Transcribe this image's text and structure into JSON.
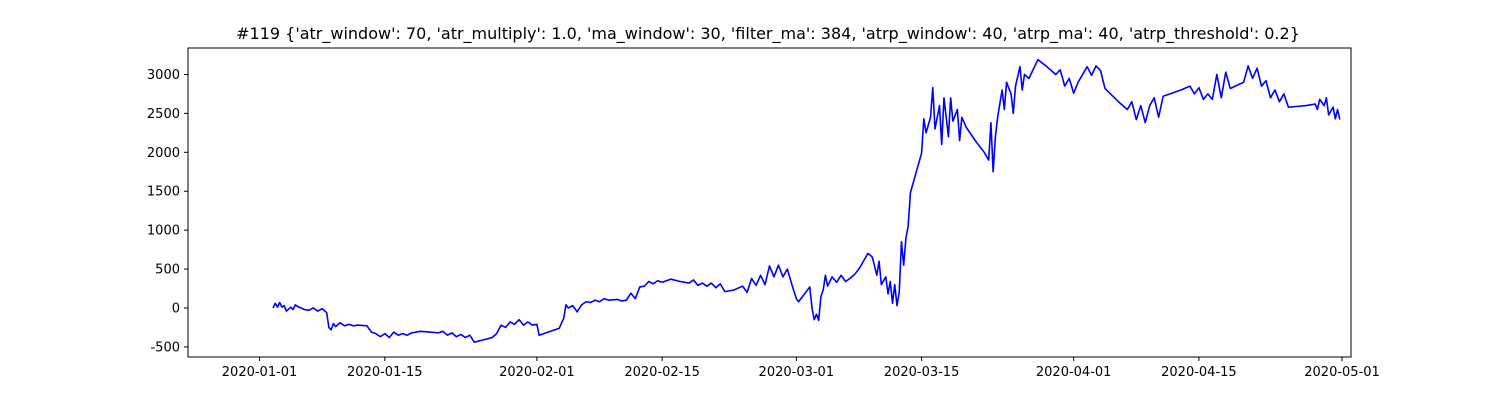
{
  "chart_data": {
    "type": "line",
    "title": "#119 {'atr_window': 70, 'atr_multiply': 1.0, 'ma_window': 30, 'filter_ma': 384, 'atrp_window': 40, 'atrp_ma': 40, 'atrp_threshold': 0.2}",
    "xlabel": "",
    "ylabel": "",
    "xlim": [
      "2019-12-24",
      "2020-05-02"
    ],
    "ylim": [
      -630,
      3340
    ],
    "x_ticks": [
      "2020-01-01",
      "2020-01-15",
      "2020-02-01",
      "2020-02-15",
      "2020-03-01",
      "2020-03-15",
      "2020-04-01",
      "2020-04-15",
      "2020-05-01"
    ],
    "y_ticks": [
      -500,
      0,
      500,
      1000,
      1500,
      2000,
      2500,
      3000
    ],
    "grid": false,
    "legend": "none",
    "series": [
      {
        "color": "#0000ff",
        "points": [
          [
            "2020-01-02 12:00",
            0
          ],
          [
            "2020-01-02 18:00",
            60
          ],
          [
            "2020-01-03 00:00",
            10
          ],
          [
            "2020-01-03 06:00",
            70
          ],
          [
            "2020-01-03 12:00",
            10
          ],
          [
            "2020-01-03 18:00",
            30
          ],
          [
            "2020-01-04 00:00",
            -40
          ],
          [
            "2020-01-04 12:00",
            10
          ],
          [
            "2020-01-04 18:00",
            -20
          ],
          [
            "2020-01-05 00:00",
            40
          ],
          [
            "2020-01-05 06:00",
            20
          ],
          [
            "2020-01-06 00:00",
            -20
          ],
          [
            "2020-01-06 12:00",
            -30
          ],
          [
            "2020-01-07 00:00",
            0
          ],
          [
            "2020-01-07 12:00",
            -40
          ],
          [
            "2020-01-08 00:00",
            -10
          ],
          [
            "2020-01-08 12:00",
            -60
          ],
          [
            "2020-01-08 18:00",
            -250
          ],
          [
            "2020-01-09 00:00",
            -280
          ],
          [
            "2020-01-09 06:00",
            -200
          ],
          [
            "2020-01-09 12:00",
            -240
          ],
          [
            "2020-01-10 00:00",
            -190
          ],
          [
            "2020-01-10 12:00",
            -230
          ],
          [
            "2020-01-11 00:00",
            -210
          ],
          [
            "2020-01-11 12:00",
            -230
          ],
          [
            "2020-01-12 00:00",
            -220
          ],
          [
            "2020-01-13 00:00",
            -230
          ],
          [
            "2020-01-13 12:00",
            -310
          ],
          [
            "2020-01-14 00:00",
            -330
          ],
          [
            "2020-01-14 12:00",
            -370
          ],
          [
            "2020-01-15 00:00",
            -330
          ],
          [
            "2020-01-15 12:00",
            -380
          ],
          [
            "2020-01-16 00:00",
            -310
          ],
          [
            "2020-01-16 12:00",
            -350
          ],
          [
            "2020-01-17 00:00",
            -330
          ],
          [
            "2020-01-17 12:00",
            -350
          ],
          [
            "2020-01-18 00:00",
            -320
          ],
          [
            "2020-01-19 00:00",
            -300
          ],
          [
            "2020-01-20 00:00",
            -310
          ],
          [
            "2020-01-21 00:00",
            -320
          ],
          [
            "2020-01-21 12:00",
            -300
          ],
          [
            "2020-01-22 00:00",
            -350
          ],
          [
            "2020-01-22 12:00",
            -320
          ],
          [
            "2020-01-23 00:00",
            -370
          ],
          [
            "2020-01-23 12:00",
            -340
          ],
          [
            "2020-01-24 00:00",
            -380
          ],
          [
            "2020-01-24 12:00",
            -350
          ],
          [
            "2020-01-25 00:00",
            -440
          ],
          [
            "2020-01-26 00:00",
            -410
          ],
          [
            "2020-01-27 00:00",
            -380
          ],
          [
            "2020-01-27 12:00",
            -330
          ],
          [
            "2020-01-28 00:00",
            -220
          ],
          [
            "2020-01-28 12:00",
            -250
          ],
          [
            "2020-01-29 00:00",
            -180
          ],
          [
            "2020-01-29 12:00",
            -210
          ],
          [
            "2020-01-30 00:00",
            -150
          ],
          [
            "2020-01-30 12:00",
            -220
          ],
          [
            "2020-01-31 00:00",
            -180
          ],
          [
            "2020-01-31 12:00",
            -220
          ],
          [
            "2020-02-01 00:00",
            -210
          ],
          [
            "2020-02-01 06:00",
            -350
          ],
          [
            "2020-02-03 12:00",
            -260
          ],
          [
            "2020-02-04 00:00",
            -130
          ],
          [
            "2020-02-04 06:00",
            40
          ],
          [
            "2020-02-04 12:00",
            0
          ],
          [
            "2020-02-05 00:00",
            30
          ],
          [
            "2020-02-05 12:00",
            -50
          ],
          [
            "2020-02-06 00:00",
            40
          ],
          [
            "2020-02-06 12:00",
            80
          ],
          [
            "2020-02-07 00:00",
            70
          ],
          [
            "2020-02-07 12:00",
            100
          ],
          [
            "2020-02-08 00:00",
            80
          ],
          [
            "2020-02-08 12:00",
            120
          ],
          [
            "2020-02-09 00:00",
            100
          ],
          [
            "2020-02-10 00:00",
            110
          ],
          [
            "2020-02-10 12:00",
            90
          ],
          [
            "2020-02-11 00:00",
            100
          ],
          [
            "2020-02-11 12:00",
            190
          ],
          [
            "2020-02-12 00:00",
            120
          ],
          [
            "2020-02-12 12:00",
            270
          ],
          [
            "2020-02-13 00:00",
            280
          ],
          [
            "2020-02-13 12:00",
            340
          ],
          [
            "2020-02-14 00:00",
            310
          ],
          [
            "2020-02-14 12:00",
            350
          ],
          [
            "2020-02-15 00:00",
            330
          ],
          [
            "2020-02-16 00:00",
            370
          ],
          [
            "2020-02-17 00:00",
            340
          ],
          [
            "2020-02-18 00:00",
            320
          ],
          [
            "2020-02-18 12:00",
            360
          ],
          [
            "2020-02-19 00:00",
            290
          ],
          [
            "2020-02-19 12:00",
            320
          ],
          [
            "2020-02-20 00:00",
            280
          ],
          [
            "2020-02-20 12:00",
            320
          ],
          [
            "2020-02-21 00:00",
            260
          ],
          [
            "2020-02-21 12:00",
            310
          ],
          [
            "2020-02-22 00:00",
            210
          ],
          [
            "2020-02-23 00:00",
            230
          ],
          [
            "2020-02-24 00:00",
            280
          ],
          [
            "2020-02-24 12:00",
            200
          ],
          [
            "2020-02-25 00:00",
            380
          ],
          [
            "2020-02-25 12:00",
            290
          ],
          [
            "2020-02-26 00:00",
            420
          ],
          [
            "2020-02-26 12:00",
            300
          ],
          [
            "2020-02-27 00:00",
            540
          ],
          [
            "2020-02-27 12:00",
            400
          ],
          [
            "2020-02-28 00:00",
            550
          ],
          [
            "2020-02-28 12:00",
            400
          ],
          [
            "2020-02-29 00:00",
            500
          ],
          [
            "2020-02-29 12:00",
            300
          ],
          [
            "2020-03-01 00:00",
            120
          ],
          [
            "2020-03-01 06:00",
            80
          ],
          [
            "2020-03-02 12:00",
            270
          ],
          [
            "2020-03-02 18:00",
            0
          ],
          [
            "2020-03-03 00:00",
            -150
          ],
          [
            "2020-03-03 06:00",
            -80
          ],
          [
            "2020-03-03 12:00",
            -160
          ],
          [
            "2020-03-03 18:00",
            150
          ],
          [
            "2020-03-04 00:00",
            230
          ],
          [
            "2020-03-04 06:00",
            420
          ],
          [
            "2020-03-04 12:00",
            280
          ],
          [
            "2020-03-05 00:00",
            400
          ],
          [
            "2020-03-05 12:00",
            330
          ],
          [
            "2020-03-06 00:00",
            420
          ],
          [
            "2020-03-06 12:00",
            340
          ],
          [
            "2020-03-07 00:00",
            380
          ],
          [
            "2020-03-07 12:00",
            430
          ],
          [
            "2020-03-08 00:00",
            500
          ],
          [
            "2020-03-08 12:00",
            600
          ],
          [
            "2020-03-09 00:00",
            700
          ],
          [
            "2020-03-09 06:00",
            680
          ],
          [
            "2020-03-09 12:00",
            650
          ],
          [
            "2020-03-10 00:00",
            420
          ],
          [
            "2020-03-10 06:00",
            600
          ],
          [
            "2020-03-10 12:00",
            300
          ],
          [
            "2020-03-11 00:00",
            400
          ],
          [
            "2020-03-11 06:00",
            180
          ],
          [
            "2020-03-11 12:00",
            340
          ],
          [
            "2020-03-11 18:00",
            60
          ],
          [
            "2020-03-12 00:00",
            300
          ],
          [
            "2020-03-12 06:00",
            30
          ],
          [
            "2020-03-12 12:00",
            200
          ],
          [
            "2020-03-12 18:00",
            850
          ],
          [
            "2020-03-13 00:00",
            550
          ],
          [
            "2020-03-13 06:00",
            900
          ],
          [
            "2020-03-13 12:00",
            1050
          ],
          [
            "2020-03-13 18:00",
            1480
          ],
          [
            "2020-03-15 00:00",
            1990
          ],
          [
            "2020-03-15 06:00",
            2430
          ],
          [
            "2020-03-15 12:00",
            2250
          ],
          [
            "2020-03-16 00:00",
            2450
          ],
          [
            "2020-03-16 06:00",
            2830
          ],
          [
            "2020-03-16 12:00",
            2300
          ],
          [
            "2020-03-17 00:00",
            2600
          ],
          [
            "2020-03-17 06:00",
            2100
          ],
          [
            "2020-03-17 12:00",
            2700
          ],
          [
            "2020-03-18 00:00",
            2200
          ],
          [
            "2020-03-18 06:00",
            2700
          ],
          [
            "2020-03-18 12:00",
            2400
          ],
          [
            "2020-03-19 00:00",
            2550
          ],
          [
            "2020-03-19 06:00",
            2150
          ],
          [
            "2020-03-19 12:00",
            2450
          ],
          [
            "2020-03-20 00:00",
            2320
          ],
          [
            "2020-03-21 00:00",
            2150
          ],
          [
            "2020-03-22 00:00",
            2000
          ],
          [
            "2020-03-22 12:00",
            1900
          ],
          [
            "2020-03-22 18:00",
            2380
          ],
          [
            "2020-03-23 00:00",
            1750
          ],
          [
            "2020-03-23 06:00",
            2200
          ],
          [
            "2020-03-23 12:00",
            2450
          ],
          [
            "2020-03-24 00:00",
            2800
          ],
          [
            "2020-03-24 06:00",
            2550
          ],
          [
            "2020-03-24 12:00",
            2900
          ],
          [
            "2020-03-25 00:00",
            2750
          ],
          [
            "2020-03-25 06:00",
            2500
          ],
          [
            "2020-03-25 12:00",
            2850
          ],
          [
            "2020-03-26 00:00",
            3100
          ],
          [
            "2020-03-26 06:00",
            2800
          ],
          [
            "2020-03-26 12:00",
            3000
          ],
          [
            "2020-03-27 00:00",
            2950
          ],
          [
            "2020-03-28 00:00",
            3190
          ],
          [
            "2020-03-29 00:00",
            3100
          ],
          [
            "2020-03-30 00:00",
            3000
          ],
          [
            "2020-03-30 12:00",
            3060
          ],
          [
            "2020-03-31 00:00",
            2850
          ],
          [
            "2020-03-31 12:00",
            2950
          ],
          [
            "2020-04-01 00:00",
            2760
          ],
          [
            "2020-04-01 12:00",
            2900
          ],
          [
            "2020-04-02 00:00",
            3000
          ],
          [
            "2020-04-02 12:00",
            3100
          ],
          [
            "2020-04-03 00:00",
            2990
          ],
          [
            "2020-04-03 12:00",
            3110
          ],
          [
            "2020-04-04 00:00",
            3050
          ],
          [
            "2020-04-04 12:00",
            2820
          ],
          [
            "2020-04-06 00:00",
            2650
          ],
          [
            "2020-04-07 00:00",
            2550
          ],
          [
            "2020-04-07 12:00",
            2650
          ],
          [
            "2020-04-08 00:00",
            2420
          ],
          [
            "2020-04-08 12:00",
            2600
          ],
          [
            "2020-04-09 00:00",
            2380
          ],
          [
            "2020-04-09 12:00",
            2600
          ],
          [
            "2020-04-10 00:00",
            2700
          ],
          [
            "2020-04-10 12:00",
            2450
          ],
          [
            "2020-04-11 00:00",
            2720
          ],
          [
            "2020-04-13 00:00",
            2800
          ],
          [
            "2020-04-14 00:00",
            2850
          ],
          [
            "2020-04-14 12:00",
            2750
          ],
          [
            "2020-04-15 00:00",
            2830
          ],
          [
            "2020-04-15 12:00",
            2680
          ],
          [
            "2020-04-16 00:00",
            2750
          ],
          [
            "2020-04-16 12:00",
            2680
          ],
          [
            "2020-04-17 00:00",
            3000
          ],
          [
            "2020-04-17 12:00",
            2700
          ],
          [
            "2020-04-18 00:00",
            3030
          ],
          [
            "2020-04-18 12:00",
            2820
          ],
          [
            "2020-04-20 00:00",
            2900
          ],
          [
            "2020-04-20 12:00",
            3110
          ],
          [
            "2020-04-21 00:00",
            2950
          ],
          [
            "2020-04-21 12:00",
            3080
          ],
          [
            "2020-04-22 00:00",
            2850
          ],
          [
            "2020-04-22 12:00",
            2920
          ],
          [
            "2020-04-23 00:00",
            2700
          ],
          [
            "2020-04-23 12:00",
            2800
          ],
          [
            "2020-04-24 00:00",
            2650
          ],
          [
            "2020-04-24 12:00",
            2750
          ],
          [
            "2020-04-25 00:00",
            2580
          ],
          [
            "2020-04-26 00:00",
            2590
          ],
          [
            "2020-04-27 00:00",
            2600
          ],
          [
            "2020-04-28 00:00",
            2620
          ],
          [
            "2020-04-28 06:00",
            2550
          ],
          [
            "2020-04-28 12:00",
            2680
          ],
          [
            "2020-04-29 00:00",
            2600
          ],
          [
            "2020-04-29 06:00",
            2700
          ],
          [
            "2020-04-29 12:00",
            2480
          ],
          [
            "2020-04-30 00:00",
            2580
          ],
          [
            "2020-04-30 06:00",
            2430
          ],
          [
            "2020-04-30 12:00",
            2550
          ],
          [
            "2020-04-30 18:00",
            2420
          ]
        ]
      }
    ]
  }
}
